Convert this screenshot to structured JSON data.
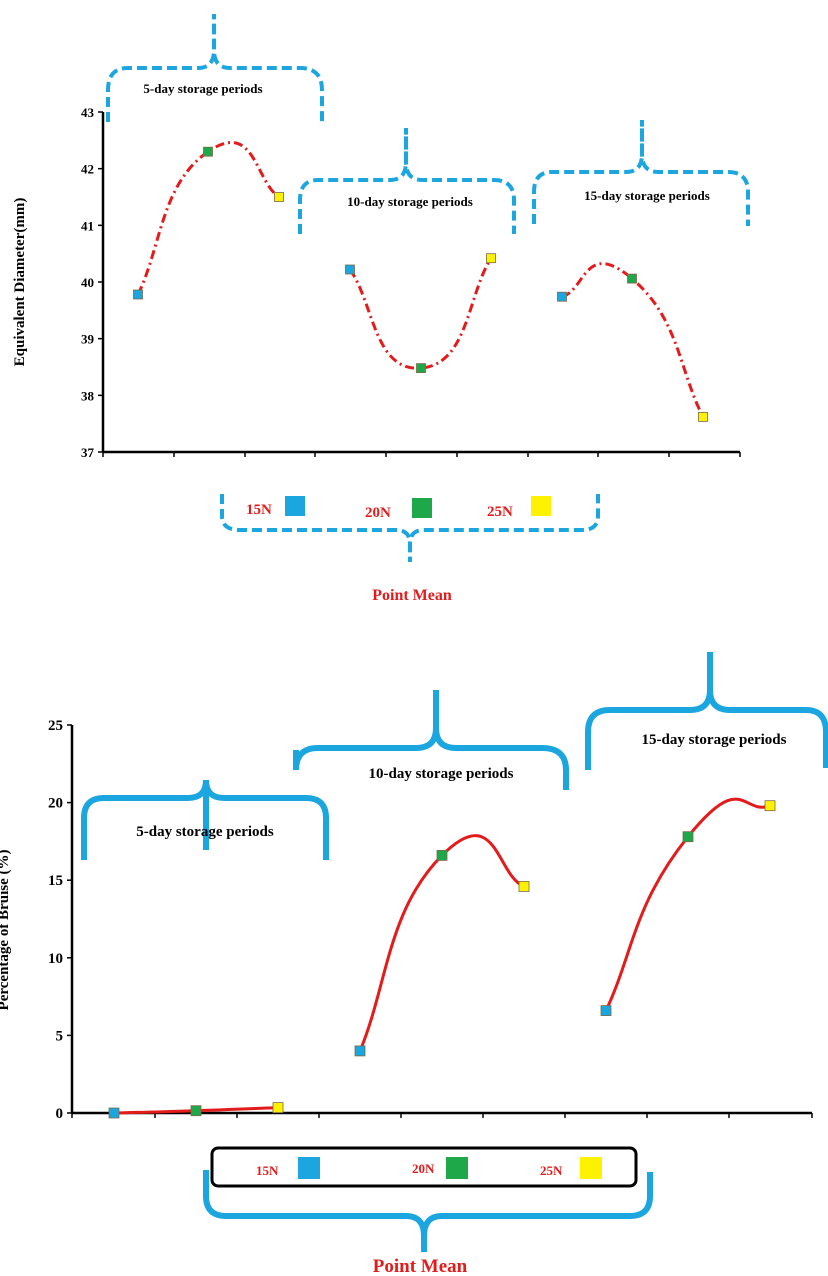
{
  "chart_data": [
    {
      "type": "line",
      "ylabel": "Equivalent  Diameter(mm)",
      "ylim": [
        37,
        43
      ],
      "yticks": [
        "37",
        "38",
        "39",
        "40",
        "41",
        "42",
        "43"
      ],
      "legend_position": "bottom",
      "legend_title": "Point Mean",
      "legend": [
        {
          "label": "15N",
          "color": "#1ba6e0"
        },
        {
          "label": "20N",
          "color": "#1fa84a"
        },
        {
          "label": "25N",
          "color": "#fff200"
        }
      ],
      "groups": [
        {
          "label": "5-day storage periods",
          "x": [
            1,
            2,
            3
          ],
          "values": [
            39.78,
            42.3,
            41.5
          ]
        },
        {
          "label": "10-day storage periods",
          "x": [
            4,
            5,
            6
          ],
          "values": [
            40.22,
            38.48,
            40.42
          ]
        },
        {
          "label": "15-day storage periods",
          "x": [
            7,
            8,
            9
          ],
          "values": [
            39.74,
            40.06,
            37.62
          ]
        }
      ],
      "line_style": "dash-dot",
      "line_color": "#e41b1b"
    },
    {
      "type": "line",
      "ylabel": "Percentage of Bruise (%)",
      "ylim": [
        0,
        25
      ],
      "yticks": [
        "0",
        "5",
        "10",
        "15",
        "20",
        "25"
      ],
      "legend_position": "bottom",
      "legend_title": "Point Mean",
      "legend": [
        {
          "label": "15N",
          "color": "#1ba6e0"
        },
        {
          "label": "20N",
          "color": "#1fa84a"
        },
        {
          "label": "25N",
          "color": "#fff200"
        }
      ],
      "groups": [
        {
          "label": "5-day storage periods",
          "x": [
            1,
            2,
            3
          ],
          "values": [
            0.0,
            0.15,
            0.35
          ]
        },
        {
          "label": "10-day storage periods",
          "x": [
            4,
            5,
            6
          ],
          "values": [
            4.0,
            16.6,
            14.6
          ]
        },
        {
          "label": "15-day storage periods",
          "x": [
            7,
            8,
            9
          ],
          "values": [
            6.6,
            17.8,
            19.8
          ]
        }
      ],
      "line_style": "solid",
      "line_color": "#e41b1b"
    }
  ]
}
